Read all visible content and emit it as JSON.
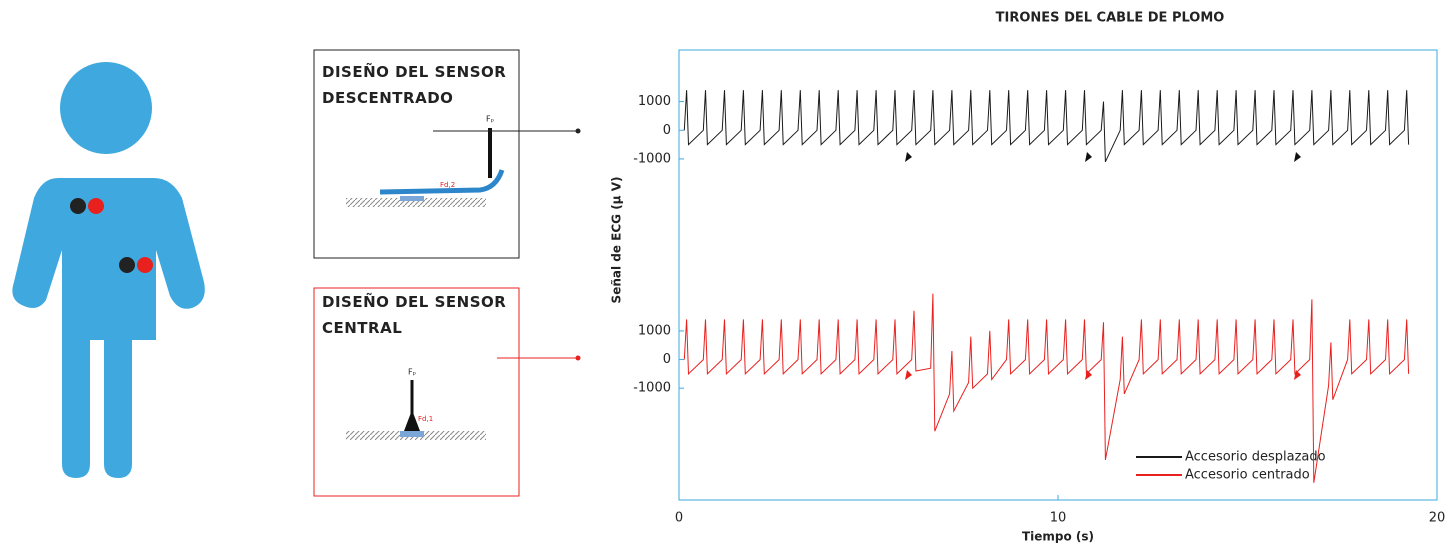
{
  "panels": {
    "offset": {
      "title": "DISEÑO DEL SENSOR DESCENTRADO",
      "force": "Fₚ",
      "detach": "Fd,2"
    },
    "central": {
      "title": "DISEÑO DEL SENSOR CENTRAL",
      "force": "Fₚ",
      "detach": "Fd,1"
    }
  },
  "chart_data": {
    "type": "line",
    "title": "TIRONES DEL CABLE DE PLOMO",
    "x_label": "Tiempo (s)",
    "y_label": "Señal de ECG (µ V)",
    "xlim": [
      0,
      20
    ],
    "xticks": [
      0,
      10,
      20
    ],
    "ylim": [
      -4900,
      10800
    ],
    "yticks": [
      {
        "value": 9000,
        "label": "1000"
      },
      {
        "value": 8000,
        "label": "0"
      },
      {
        "value": 7000,
        "label": "-1000"
      },
      1000,
      0,
      -1000
    ],
    "x": [
      0.14,
      0.2,
      0.25,
      0.64,
      0.7,
      0.75,
      1.14,
      1.2,
      1.25,
      1.64,
      1.7,
      1.75,
      2.14,
      2.2,
      2.25,
      2.64,
      2.7,
      2.75,
      3.14,
      3.2,
      3.25,
      3.64,
      3.7,
      3.75,
      4.14,
      4.2,
      4.25,
      4.64,
      4.7,
      4.75,
      5.14,
      5.2,
      5.25,
      5.64,
      5.7,
      5.75,
      6.14,
      6.2,
      6.25,
      6.64,
      6.7,
      6.75,
      7.14,
      7.2,
      7.25,
      7.64,
      7.7,
      7.75,
      8.14,
      8.2,
      8.25,
      8.64,
      8.7,
      8.75,
      9.14,
      9.2,
      9.25,
      9.64,
      9.7,
      9.75,
      10.14,
      10.2,
      10.25,
      10.64,
      10.7,
      10.75,
      11.14,
      11.2,
      11.25,
      11.64,
      11.7,
      11.75,
      12.14,
      12.2,
      12.25,
      12.64,
      12.7,
      12.75,
      13.14,
      13.2,
      13.25,
      13.64,
      13.7,
      13.75,
      14.14,
      14.2,
      14.25,
      14.64,
      14.7,
      14.75,
      15.14,
      15.2,
      15.25,
      15.64,
      15.7,
      15.75,
      16.14,
      16.2,
      16.25,
      16.64,
      16.7,
      16.75,
      17.14,
      17.2,
      17.25,
      17.64,
      17.7,
      17.75,
      18.14,
      18.2,
      18.25,
      18.64,
      18.7,
      18.75,
      19.14,
      19.2,
      19.25
    ],
    "series": [
      {
        "name": "Accesorio desplazado",
        "color": "#1a1a1a",
        "values": [
          8000,
          9400,
          7500,
          8000,
          9400,
          7500,
          8000,
          9400,
          7500,
          8000,
          9400,
          7500,
          8000,
          9400,
          7500,
          8000,
          9400,
          7500,
          8000,
          9400,
          7500,
          8000,
          9400,
          7500,
          8000,
          9400,
          7500,
          8000,
          9400,
          7500,
          8000,
          9400,
          7500,
          8000,
          9400,
          7500,
          8000,
          9400,
          7500,
          8000,
          9400,
          7500,
          8000,
          9400,
          7500,
          8000,
          9400,
          7500,
          8000,
          9400,
          7500,
          8000,
          9400,
          7500,
          8000,
          9400,
          7500,
          8000,
          9400,
          7500,
          8000,
          9400,
          7500,
          8000,
          9400,
          7500,
          8000,
          9000,
          6900,
          8000,
          9400,
          7500,
          8000,
          9400,
          7500,
          8000,
          9400,
          7500,
          8000,
          9400,
          7500,
          8000,
          9400,
          7500,
          8000,
          9400,
          7500,
          8000,
          9400,
          7500,
          8000,
          9400,
          7500,
          8000,
          9400,
          7500,
          8000,
          9400,
          7500,
          8000,
          9400,
          7500,
          8000,
          9400,
          7500,
          8000,
          9400,
          7500,
          8000,
          9400,
          7500,
          8000,
          9400,
          7500,
          8000,
          9400,
          7500
        ]
      },
      {
        "name": "Accesorio centrado",
        "color": "#e8211f",
        "values": [
          0,
          1400,
          -500,
          0,
          1400,
          -500,
          0,
          1400,
          -500,
          0,
          1400,
          -500,
          0,
          1400,
          -500,
          0,
          1400,
          -500,
          0,
          1400,
          -500,
          0,
          1400,
          -500,
          0,
          1400,
          -500,
          0,
          1400,
          -500,
          0,
          1400,
          -500,
          0,
          1400,
          -500,
          0,
          1700,
          -400,
          -300,
          2300,
          -2500,
          -1200,
          300,
          -1800,
          -800,
          800,
          -1000,
          -500,
          1000,
          -700,
          0,
          1400,
          -500,
          0,
          1400,
          -500,
          0,
          1400,
          -500,
          0,
          1400,
          -500,
          0,
          1400,
          -500,
          0,
          1300,
          -3500,
          -700,
          800,
          -1200,
          0,
          1400,
          -500,
          0,
          1400,
          -500,
          0,
          1400,
          -500,
          0,
          1400,
          -500,
          0,
          1400,
          -500,
          0,
          1400,
          -500,
          0,
          1400,
          -500,
          0,
          1400,
          -500,
          0,
          1400,
          -500,
          0,
          2100,
          -4300,
          -900,
          600,
          -1400,
          0,
          1400,
          -500,
          0,
          1400,
          -500,
          0,
          1400,
          -500,
          0,
          1400,
          -500
        ]
      }
    ]
  }
}
